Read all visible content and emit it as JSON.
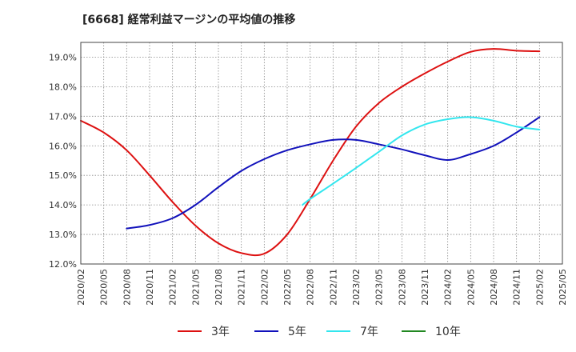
{
  "chart_data": {
    "type": "line",
    "title": "[6668]  経常利益マージンの平均値の推移",
    "xlabel": "",
    "ylabel": "",
    "ylim": [
      12.0,
      19.5
    ],
    "y_ticks": [
      "12.0%",
      "13.0%",
      "14.0%",
      "15.0%",
      "16.0%",
      "17.0%",
      "18.0%",
      "19.0%"
    ],
    "x_ticks": [
      "2020/02",
      "2020/05",
      "2020/08",
      "2020/11",
      "2021/02",
      "2021/05",
      "2021/08",
      "2021/11",
      "2022/02",
      "2022/05",
      "2022/08",
      "2022/11",
      "2023/02",
      "2023/05",
      "2023/08",
      "2023/11",
      "2024/02",
      "2024/05",
      "2024/08",
      "2024/11",
      "2025/02",
      "2025/05"
    ],
    "grid": true,
    "legend_position": "bottom",
    "series": [
      {
        "name": "3年",
        "color": "#dd1111",
        "points": [
          [
            "2020/02",
            16.85
          ],
          [
            "2020/05",
            16.45
          ],
          [
            "2020/08",
            15.85
          ],
          [
            "2020/11",
            15.0
          ],
          [
            "2021/02",
            14.1
          ],
          [
            "2021/05",
            13.3
          ],
          [
            "2021/08",
            12.7
          ],
          [
            "2021/11",
            12.37
          ],
          [
            "2022/02",
            12.35
          ],
          [
            "2022/05",
            13.0
          ],
          [
            "2022/08",
            14.2
          ],
          [
            "2022/11",
            15.5
          ],
          [
            "2023/02",
            16.65
          ],
          [
            "2023/05",
            17.45
          ],
          [
            "2023/08",
            18.0
          ],
          [
            "2023/11",
            18.45
          ],
          [
            "2024/02",
            18.85
          ],
          [
            "2024/05",
            19.18
          ],
          [
            "2024/08",
            19.28
          ],
          [
            "2024/11",
            19.22
          ],
          [
            "2025/02",
            19.2
          ]
        ]
      },
      {
        "name": "5年",
        "color": "#1111bb",
        "points": [
          [
            "2020/08",
            13.2
          ],
          [
            "2020/11",
            13.32
          ],
          [
            "2021/02",
            13.55
          ],
          [
            "2021/05",
            14.0
          ],
          [
            "2021/08",
            14.6
          ],
          [
            "2021/11",
            15.15
          ],
          [
            "2022/02",
            15.55
          ],
          [
            "2022/05",
            15.85
          ],
          [
            "2022/08",
            16.05
          ],
          [
            "2022/11",
            16.2
          ],
          [
            "2023/02",
            16.2
          ],
          [
            "2023/05",
            16.05
          ],
          [
            "2023/08",
            15.88
          ],
          [
            "2023/11",
            15.68
          ],
          [
            "2024/02",
            15.52
          ],
          [
            "2024/05",
            15.72
          ],
          [
            "2024/08",
            16.0
          ],
          [
            "2024/11",
            16.45
          ],
          [
            "2025/02",
            16.97
          ]
        ]
      },
      {
        "name": "7年",
        "color": "#33e6ee",
        "points": [
          [
            "2022/07",
            14.0
          ],
          [
            "2022/08",
            14.2
          ],
          [
            "2022/11",
            14.72
          ],
          [
            "2023/02",
            15.25
          ],
          [
            "2023/05",
            15.8
          ],
          [
            "2023/08",
            16.35
          ],
          [
            "2023/11",
            16.72
          ],
          [
            "2024/02",
            16.9
          ],
          [
            "2024/05",
            16.97
          ],
          [
            "2024/08",
            16.85
          ],
          [
            "2024/11",
            16.65
          ],
          [
            "2025/02",
            16.55
          ]
        ]
      },
      {
        "name": "10年",
        "color": "#228822",
        "points": []
      }
    ]
  }
}
